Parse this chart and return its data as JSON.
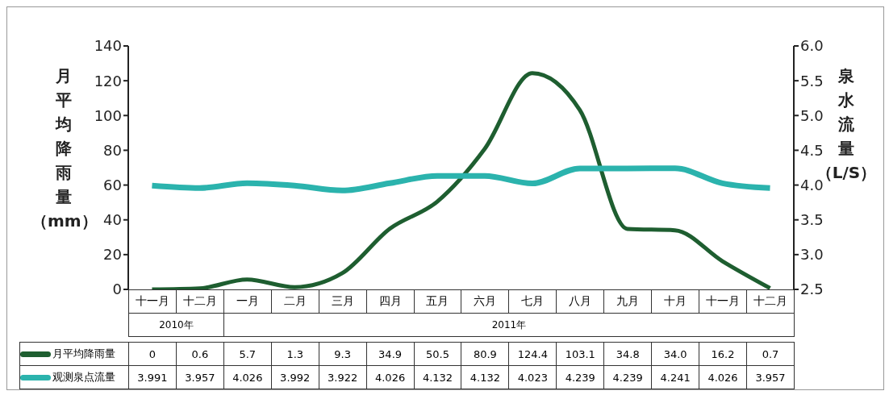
{
  "chart_data": {
    "type": "line",
    "ylabel": "月平均降雨量（mm）",
    "y2label": "泉水流量（L/S）",
    "categories": [
      "十一月",
      "十二月",
      "一月",
      "二月",
      "三月",
      "四月",
      "五月",
      "六月",
      "七月",
      "八月",
      "九月",
      "十月",
      "十一月",
      "十二月"
    ],
    "annotations": [
      "2010年",
      "2011年"
    ],
    "series": [
      {
        "name": "月平均降雨量",
        "color": "#1e5e30",
        "values": [
          0,
          0.6,
          5.7,
          1.3,
          9.3,
          34.9,
          50.5,
          80.9,
          124.4,
          103.1,
          34.8,
          34.0,
          16.2,
          0.7
        ],
        "value_labels": [
          "0",
          "0.6",
          "5.7",
          "1.3",
          "9.3",
          "34.9",
          "50.5",
          "80.9",
          "124.4",
          "103.1",
          "34.8",
          "34.0",
          "16.2",
          "0.7"
        ]
      },
      {
        "name": "观测泉点流量",
        "color": "#2bb3ad",
        "axis": "y2",
        "values": [
          3.991,
          3.957,
          4.026,
          3.992,
          3.922,
          4.026,
          4.132,
          4.132,
          4.023,
          4.239,
          4.239,
          4.241,
          4.026,
          3.957
        ],
        "value_labels": [
          "3.991",
          "3.957",
          "4.026",
          "3.992",
          "3.922",
          "4.026",
          "4.132",
          "4.132",
          "4.023",
          "4.239",
          "4.239",
          "4.241",
          "4.026",
          "3.957"
        ]
      }
    ],
    "ylim": [
      0,
      140
    ],
    "yticks": [
      0,
      20,
      40,
      60,
      80,
      100,
      120,
      140
    ],
    "y2lim": [
      2.5,
      6.0
    ],
    "y2ticks": [
      {
        "value": 2.5,
        "label": "2.5"
      },
      {
        "value": 3,
        "label": "3.0"
      },
      {
        "value": 3.5,
        "label": "3.5"
      },
      {
        "value": 4,
        "label": "4.0"
      },
      {
        "value": 4.5,
        "label": "4.5"
      },
      {
        "value": 5,
        "label": "5.0"
      },
      {
        "value": 5.5,
        "label": "5.5"
      },
      {
        "value": 6,
        "label": "6.0"
      }
    ],
    "grid": false,
    "legend": "bottom",
    "marker": "none",
    "line_style": "solid"
  }
}
